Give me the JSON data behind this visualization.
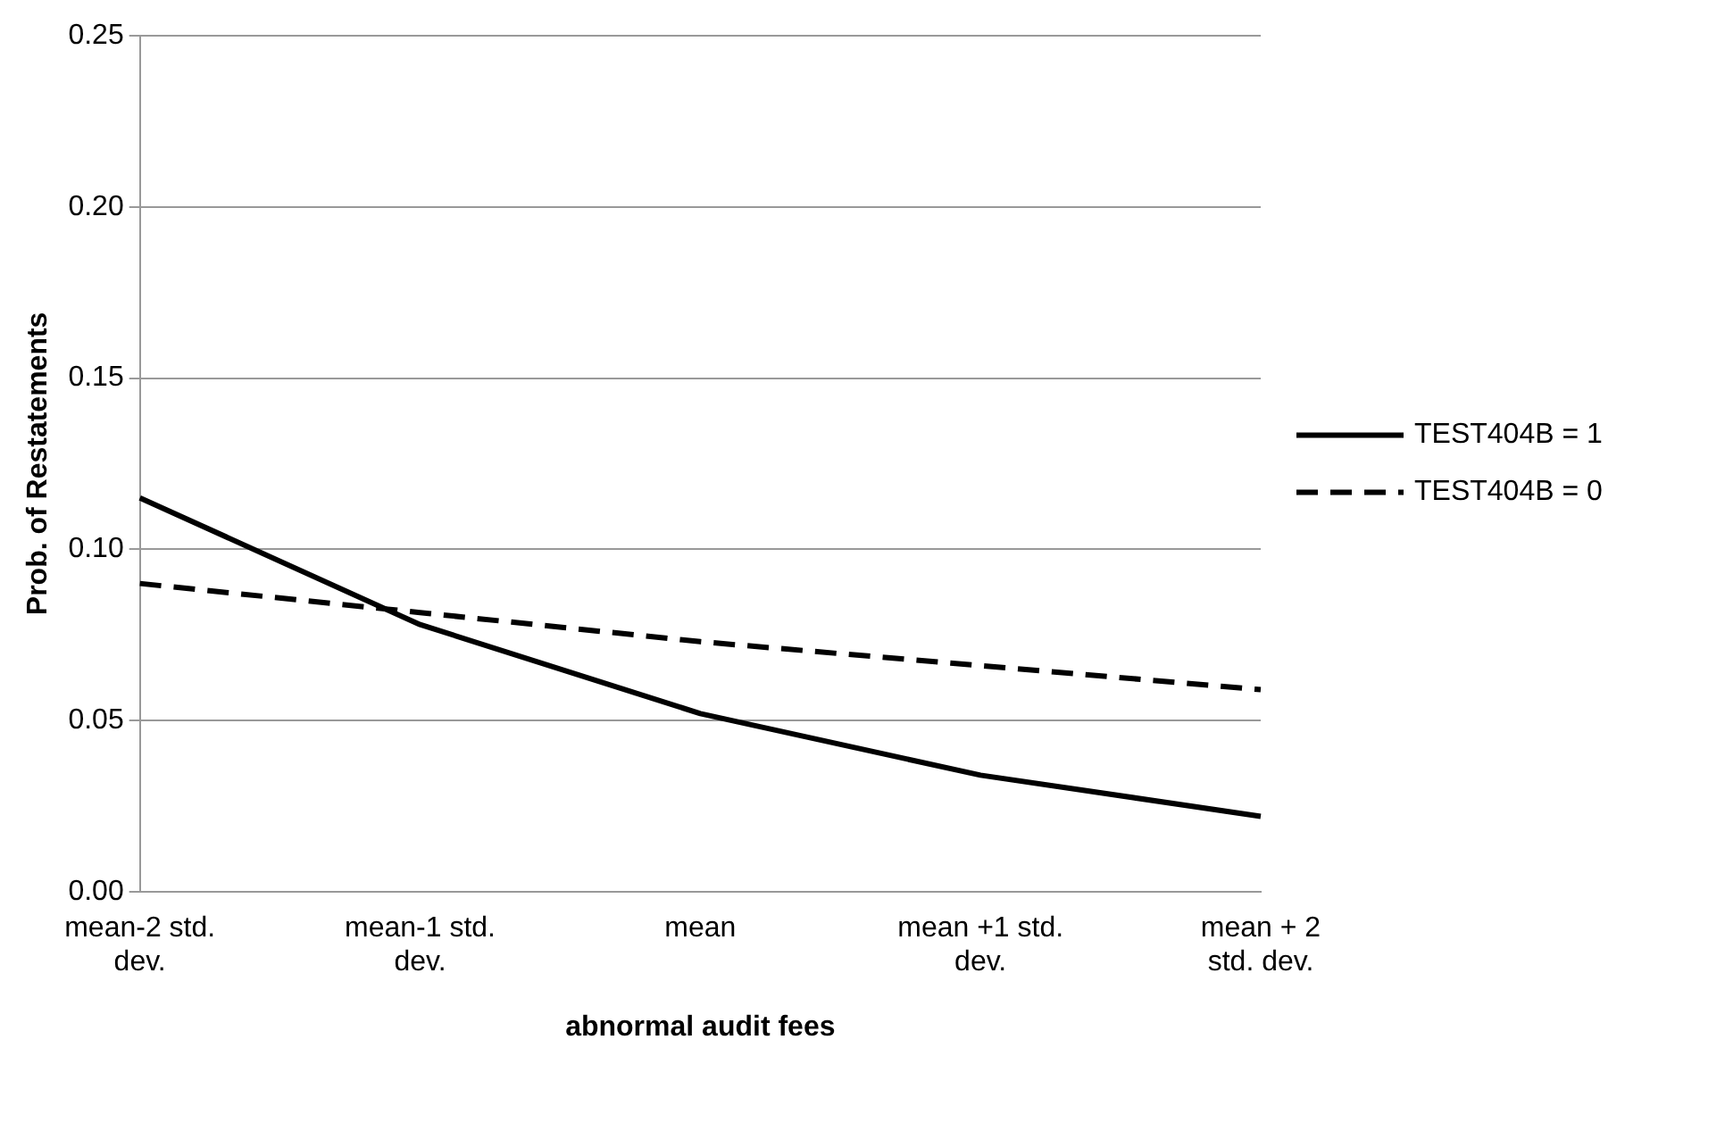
{
  "chart_data": {
    "type": "line",
    "xlabel": "abnormal audit fees",
    "ylabel": "Prob. of Restatements",
    "categories": [
      "mean-2 std. dev.",
      "mean-1 std. dev.",
      "mean",
      "mean +1 std. dev.",
      "mean + 2 std. dev."
    ],
    "series": [
      {
        "name": "TEST404B = 1",
        "color": "#000000",
        "line_style": "solid",
        "values": [
          0.115,
          0.078,
          0.052,
          0.034,
          0.022
        ]
      },
      {
        "name": "TEST404B = 0",
        "color": "#000000",
        "line_style": "dashed",
        "values": [
          0.09,
          0.0815,
          0.073,
          0.066,
          0.059
        ]
      }
    ],
    "ylim": [
      0,
      0.25
    ],
    "yticks": [
      {
        "value": 0,
        "label": "0.00"
      },
      {
        "value": 0.05,
        "label": "0.05"
      },
      {
        "value": 0.1,
        "label": "0.10"
      },
      {
        "value": 0.15,
        "label": "0.15"
      },
      {
        "value": 0.2,
        "label": "0.20"
      },
      {
        "value": 0.25,
        "label": "0.25"
      }
    ],
    "grid": "y",
    "legend": "right",
    "marker": "none"
  }
}
